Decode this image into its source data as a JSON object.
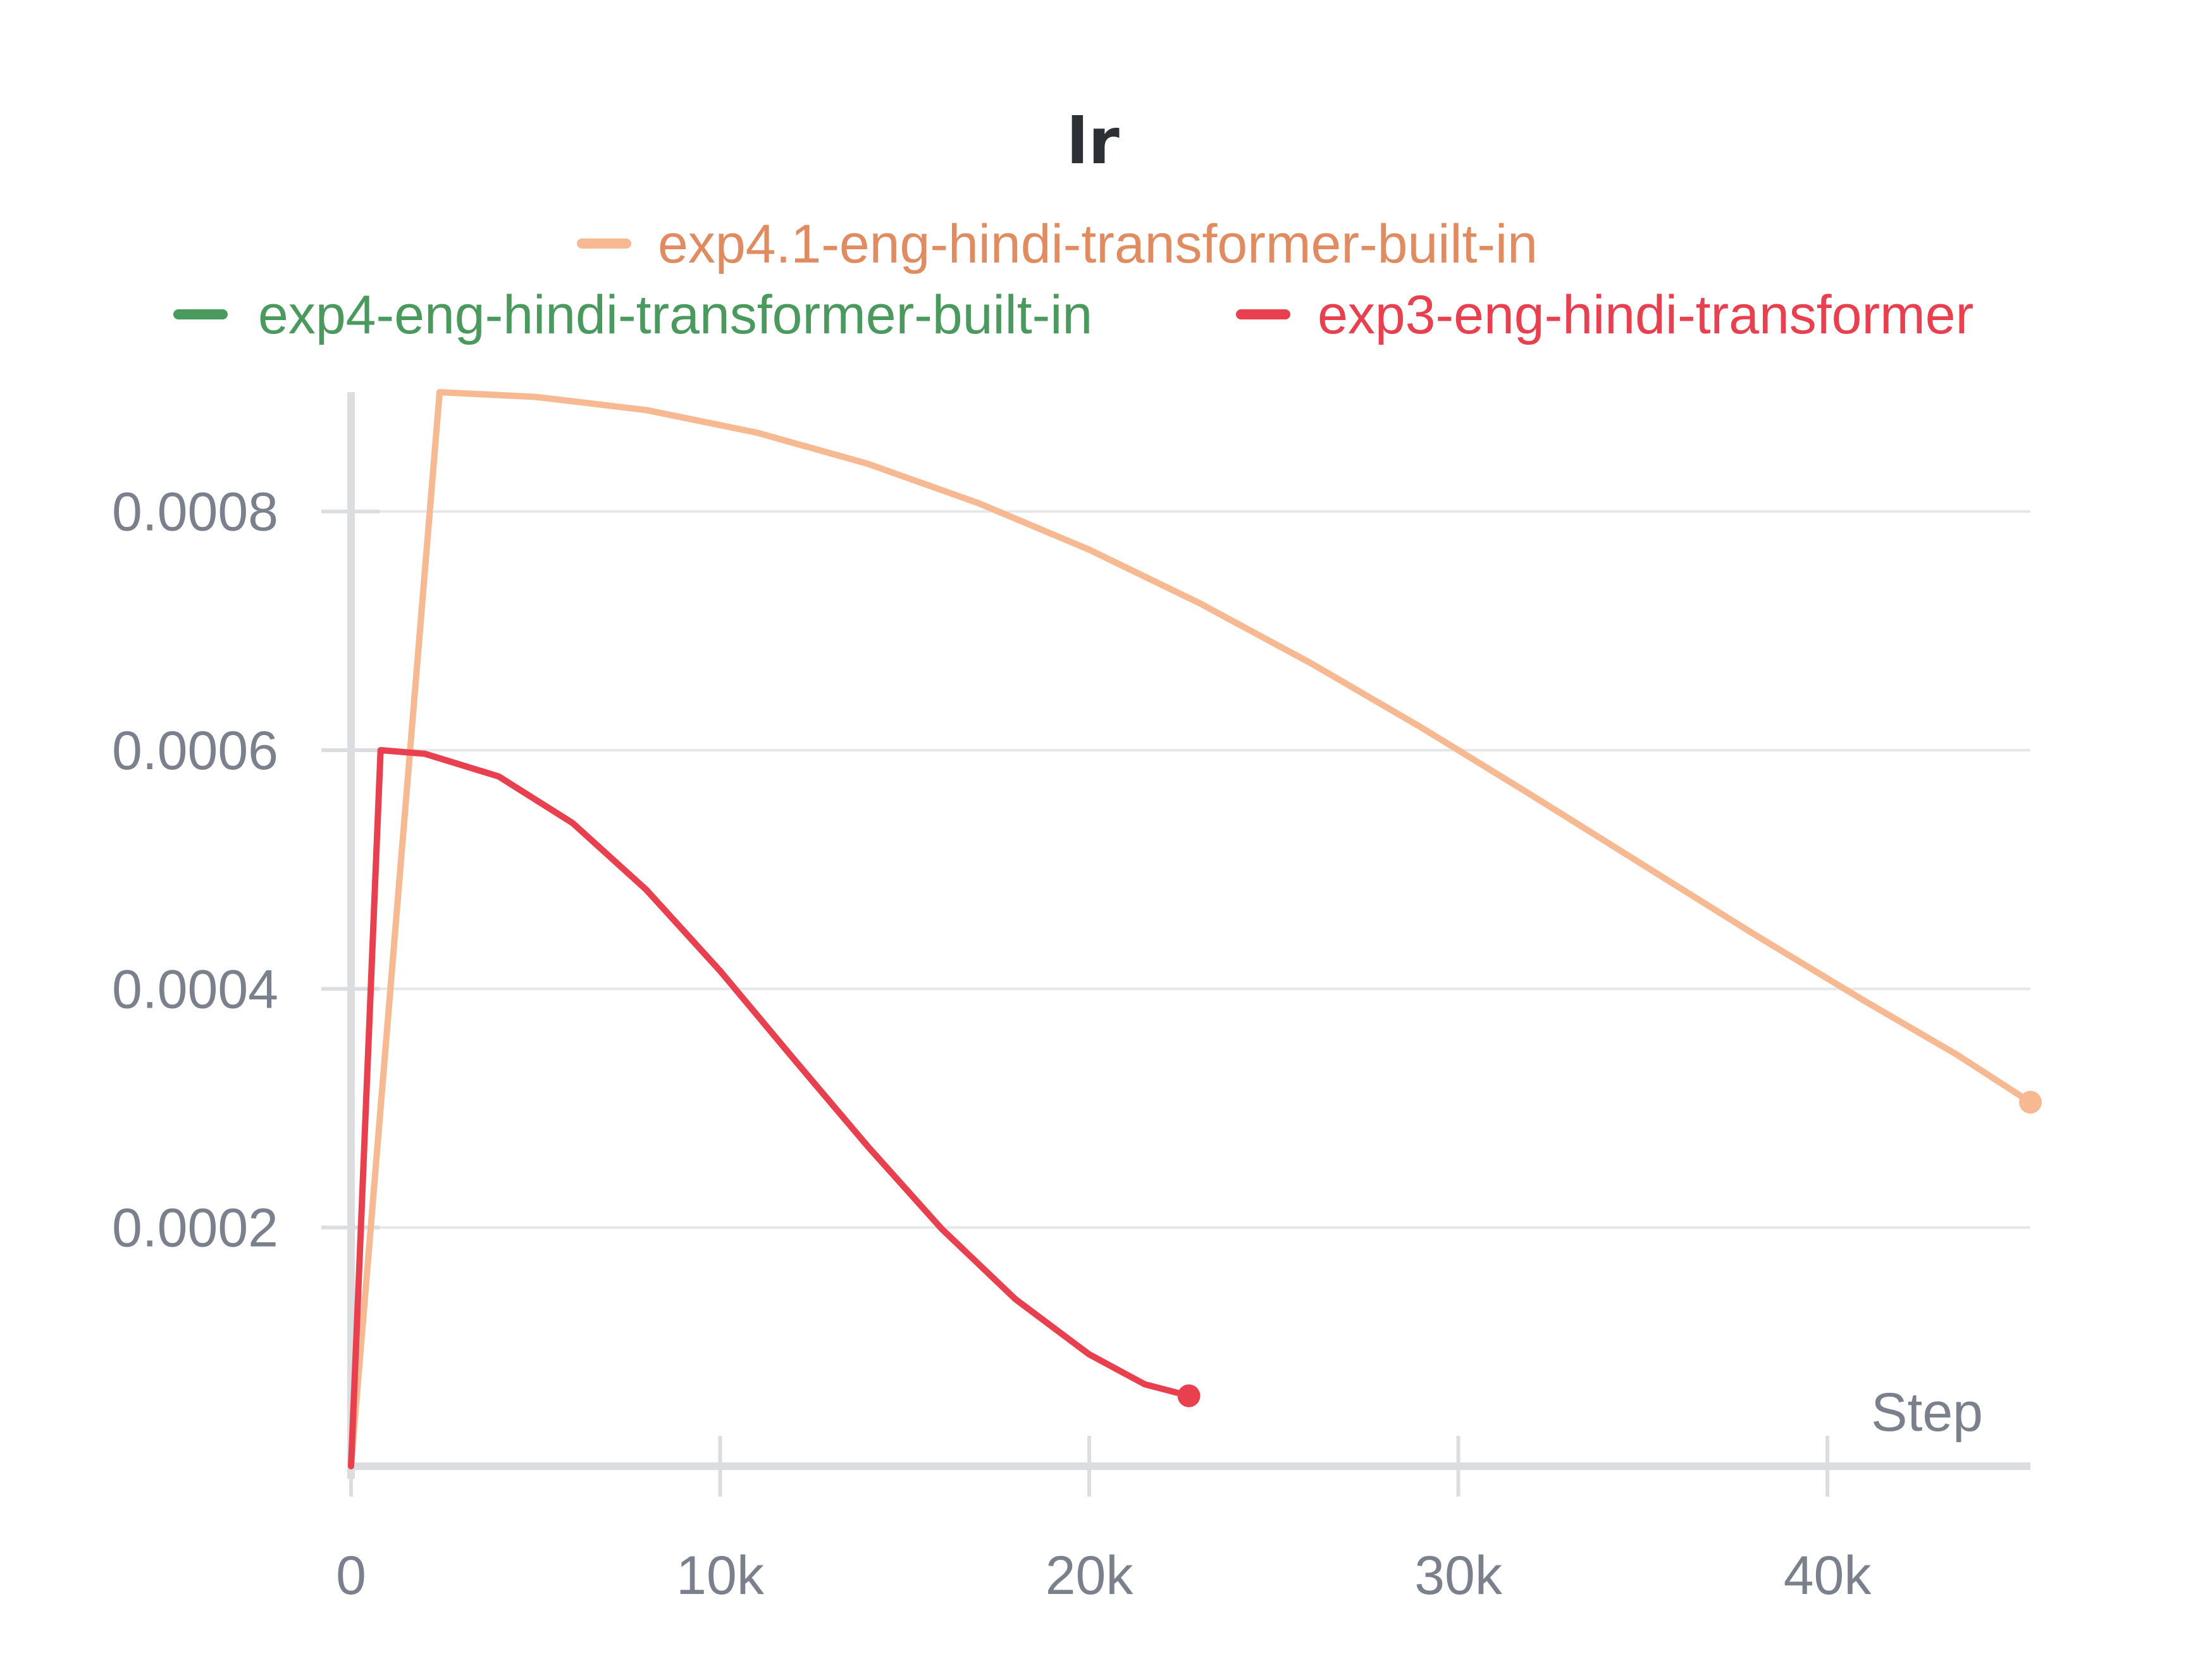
{
  "chart_data": {
    "type": "line",
    "title": "lr",
    "xlabel": "Step",
    "ylabel": "",
    "xlim": [
      0,
      45500
    ],
    "ylim": [
      0,
      0.0009
    ],
    "x_ticks": [
      {
        "value": 0,
        "label": "0"
      },
      {
        "value": 10000,
        "label": "10k"
      },
      {
        "value": 20000,
        "label": "20k"
      },
      {
        "value": 30000,
        "label": "30k"
      },
      {
        "value": 40000,
        "label": "40k"
      }
    ],
    "y_ticks": [
      {
        "value": 0.0002,
        "label": "0.0002"
      },
      {
        "value": 0.0004,
        "label": "0.0004"
      },
      {
        "value": 0.0006,
        "label": "0.0006"
      },
      {
        "value": 0.0008,
        "label": "0.0008"
      }
    ],
    "grid": true,
    "legend_position": "top",
    "series": [
      {
        "name": "exp4.1-eng-hindi-transformer-built-in",
        "color": "#f7b992",
        "label_color": "#e08c60",
        "end_marker": true,
        "x": [
          0,
          2400,
          5000,
          8000,
          11000,
          14000,
          17000,
          20000,
          23000,
          26000,
          29000,
          32000,
          35000,
          38000,
          41000,
          43500,
          45500
        ],
        "y": [
          0,
          0.0009,
          0.000896,
          0.000885,
          0.000866,
          0.00084,
          0.000807,
          0.000768,
          0.000723,
          0.000673,
          0.000619,
          0.000562,
          0.000504,
          0.000446,
          0.00039,
          0.000345,
          0.000305
        ]
      },
      {
        "name": "exp4-eng-hindi-transformer-built-in",
        "color": "#4a9a5e",
        "label_color": "#4a9a5e",
        "end_marker": false,
        "x": [],
        "y": []
      },
      {
        "name": "exp3-eng-hindi-transformer",
        "color": "#e8404f",
        "label_color": "#e8404f",
        "end_marker": true,
        "x": [
          0,
          800,
          2000,
          4000,
          6000,
          8000,
          10000,
          12000,
          14000,
          16000,
          18000,
          20000,
          21500,
          22700
        ],
        "y": [
          0,
          0.0006,
          0.000597,
          0.000578,
          0.000539,
          0.000483,
          0.000415,
          0.000341,
          0.000268,
          0.000199,
          0.00014,
          9.37e-05,
          6.87e-05,
          5.9e-05
        ]
      }
    ]
  }
}
